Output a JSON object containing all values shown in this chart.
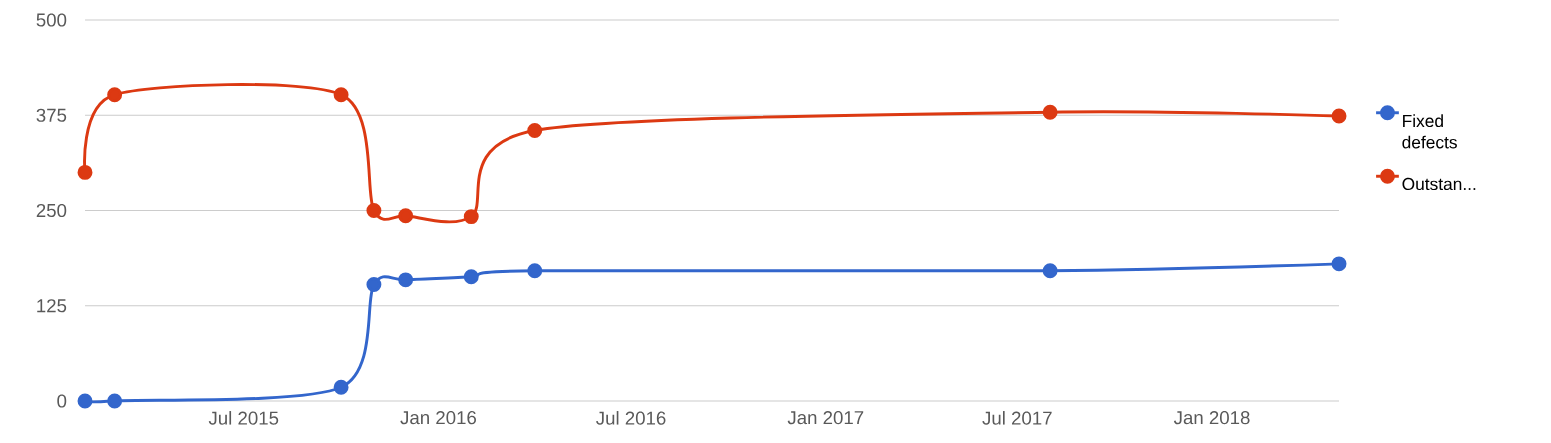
{
  "chart_data": {
    "type": "line",
    "x": [
      "2015-02-01",
      "2015-03-01",
      "2015-10-01",
      "2015-11-01",
      "2015-12-01",
      "2016-02-01",
      "2016-04-01",
      "2017-08-01",
      "2018-05-01"
    ],
    "series": [
      {
        "name": "Fixed defects",
        "color": "#3366cc",
        "values": [
          0,
          0,
          18,
          153,
          159,
          163,
          171,
          171,
          180
        ]
      },
      {
        "name": "Outstan...",
        "color": "#dc3912",
        "values": [
          300,
          402,
          402,
          250,
          243,
          242,
          355,
          379,
          374
        ]
      }
    ],
    "xlim": [
      "2015-02-01",
      "2018-05-01"
    ],
    "xticks": [
      {
        "value": "2015-07-01",
        "label": "Jul 2015"
      },
      {
        "value": "2016-01-01",
        "label": "Jan 2016"
      },
      {
        "value": "2016-07-01",
        "label": "Jul 2016"
      },
      {
        "value": "2017-01-01",
        "label": "Jan 2017"
      },
      {
        "value": "2017-07-01",
        "label": "Jul 2017"
      },
      {
        "value": "2018-01-01",
        "label": "Jan 2018"
      }
    ],
    "ylim": [
      0,
      500
    ],
    "yticks": [
      0,
      125,
      250,
      375,
      500
    ],
    "grid": "y",
    "legend": "right",
    "marker": "circle"
  }
}
